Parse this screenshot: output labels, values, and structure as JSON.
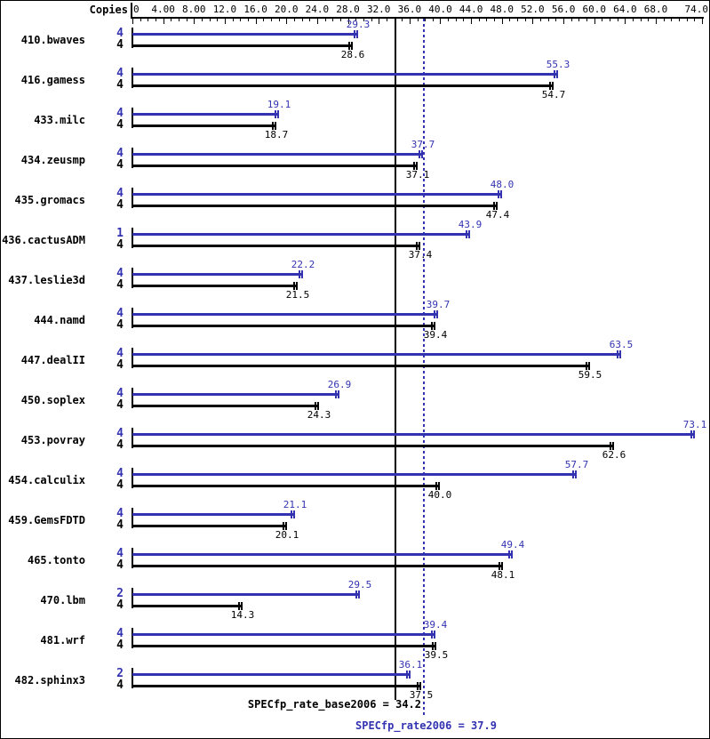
{
  "chart_data": {
    "type": "bar",
    "orientation": "horizontal",
    "title": "",
    "copies_header": "Copies",
    "colors": {
      "peak": "#3333b2",
      "base": "#000000",
      "background": "#ffffff"
    },
    "axis": {
      "min": 0,
      "max": 74,
      "minor_step": 1,
      "major_step": 4,
      "grid": false,
      "tick_labels": [
        {
          "value": 0,
          "text": "0"
        },
        {
          "value": 4,
          "text": "4.00"
        },
        {
          "value": 8,
          "text": "8.00"
        },
        {
          "value": 12,
          "text": "12.0"
        },
        {
          "value": 16,
          "text": "16.0"
        },
        {
          "value": 20,
          "text": "20.0"
        },
        {
          "value": 24,
          "text": "24.0"
        },
        {
          "value": 28,
          "text": "28.0"
        },
        {
          "value": 32,
          "text": "32.0"
        },
        {
          "value": 36,
          "text": "36.0"
        },
        {
          "value": 40,
          "text": "40.0"
        },
        {
          "value": 44,
          "text": "44.0"
        },
        {
          "value": 48,
          "text": "48.0"
        },
        {
          "value": 52,
          "text": "52.0"
        },
        {
          "value": 56,
          "text": "56.0"
        },
        {
          "value": 60,
          "text": "60.0"
        },
        {
          "value": 64,
          "text": "64.0"
        },
        {
          "value": 68,
          "text": "68.0"
        },
        {
          "value": 74,
          "text": "74.0"
        }
      ]
    },
    "series": [
      {
        "name": "peak",
        "color": "#3333b2"
      },
      {
        "name": "base",
        "color": "#000000"
      }
    ],
    "benchmarks": [
      {
        "name": "410.bwaves",
        "peak_copies": "4",
        "base_copies": "4",
        "peak": "29.3",
        "base": "28.6"
      },
      {
        "name": "416.gamess",
        "peak_copies": "4",
        "base_copies": "4",
        "peak": "55.3",
        "base": "54.7"
      },
      {
        "name": "433.milc",
        "peak_copies": "4",
        "base_copies": "4",
        "peak": "19.1",
        "base": "18.7"
      },
      {
        "name": "434.zeusmp",
        "peak_copies": "4",
        "base_copies": "4",
        "peak": "37.7",
        "base": "37.1"
      },
      {
        "name": "435.gromacs",
        "peak_copies": "4",
        "base_copies": "4",
        "peak": "48.0",
        "base": "47.4"
      },
      {
        "name": "436.cactusADM",
        "peak_copies": "1",
        "base_copies": "4",
        "peak": "43.9",
        "base": "37.4"
      },
      {
        "name": "437.leslie3d",
        "peak_copies": "4",
        "base_copies": "4",
        "peak": "22.2",
        "base": "21.5"
      },
      {
        "name": "444.namd",
        "peak_copies": "4",
        "base_copies": "4",
        "peak": "39.7",
        "base": "39.4"
      },
      {
        "name": "447.dealII",
        "peak_copies": "4",
        "base_copies": "4",
        "peak": "63.5",
        "base": "59.5"
      },
      {
        "name": "450.soplex",
        "peak_copies": "4",
        "base_copies": "4",
        "peak": "26.9",
        "base": "24.3"
      },
      {
        "name": "453.povray",
        "peak_copies": "4",
        "base_copies": "4",
        "peak": "73.1",
        "base": "62.6"
      },
      {
        "name": "454.calculix",
        "peak_copies": "4",
        "base_copies": "4",
        "peak": "57.7",
        "base": "40.0"
      },
      {
        "name": "459.GemsFDTD",
        "peak_copies": "4",
        "base_copies": "4",
        "peak": "21.1",
        "base": "20.1"
      },
      {
        "name": "465.tonto",
        "peak_copies": "4",
        "base_copies": "4",
        "peak": "49.4",
        "base": "48.1"
      },
      {
        "name": "470.lbm",
        "peak_copies": "2",
        "base_copies": "4",
        "peak": "29.5",
        "base": "14.3"
      },
      {
        "name": "481.wrf",
        "peak_copies": "4",
        "base_copies": "4",
        "peak": "39.4",
        "base": "39.5"
      },
      {
        "name": "482.sphinx3",
        "peak_copies": "2",
        "base_copies": "4",
        "peak": "36.1",
        "base": "37.5"
      }
    ],
    "reference_lines": [
      {
        "name": "SPECfp_rate_base2006",
        "value": 34.2,
        "label": "SPECfp_rate_base2006 = 34.2",
        "style": "solid",
        "color": "#000000"
      },
      {
        "name": "SPECfp_rate2006",
        "value": 37.9,
        "label": "SPECfp_rate2006 = 37.9",
        "style": "dotted",
        "color": "#3333b2"
      }
    ]
  }
}
